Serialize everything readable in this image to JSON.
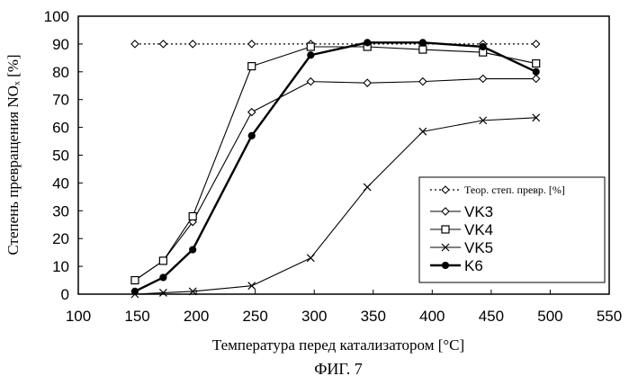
{
  "chart_data": {
    "type": "line",
    "title": "",
    "caption": "ФИГ. 7",
    "xlabel": "Температура перед катализатором [°C]",
    "ylabel": "Степень превращения NOₓ [%]",
    "xlim": [
      100,
      550
    ],
    "ylim": [
      0,
      100
    ],
    "x_ticks": [
      "100",
      "150",
      "200",
      "250",
      "300",
      "350",
      "400",
      "450",
      "500",
      "550"
    ],
    "y_ticks": [
      "0",
      "10",
      "20",
      "30",
      "40",
      "50",
      "60",
      "70",
      "80",
      "90",
      "100"
    ],
    "grid": false,
    "legend_position": "right",
    "series": [
      {
        "name": "Теор. степ. превр. [%]",
        "style": "dotted",
        "marker": "diamond",
        "color": "#000000",
        "x": [
          148,
          172,
          197,
          247,
          297,
          345,
          392,
          443,
          488
        ],
        "y": [
          90,
          90,
          90,
          90,
          90,
          90,
          90,
          90,
          90
        ]
      },
      {
        "name": "VK3",
        "style": "solid",
        "marker": "diamond",
        "color": "#000000",
        "x": [
          148,
          172,
          197,
          247,
          297,
          345,
          392,
          443,
          488
        ],
        "y": [
          5,
          12,
          26,
          65.5,
          76.5,
          76,
          76.5,
          77.5,
          77.5
        ]
      },
      {
        "name": "VK4",
        "style": "solid",
        "marker": "square",
        "color": "#000000",
        "x": [
          148,
          172,
          197,
          247,
          297,
          345,
          392,
          443,
          488
        ],
        "y": [
          5,
          12,
          28,
          82,
          89,
          89,
          88,
          87,
          83
        ]
      },
      {
        "name": "VK5",
        "style": "solid",
        "marker": "x",
        "color": "#000000",
        "x": [
          148,
          172,
          197,
          247,
          297,
          345,
          392,
          443,
          488
        ],
        "y": [
          0,
          0.5,
          1,
          3,
          13,
          38.5,
          58.5,
          62.5,
          63.5
        ]
      },
      {
        "name": "K6",
        "style": "bold",
        "marker": "circle",
        "color": "#000000",
        "x": [
          148,
          172,
          197,
          247,
          297,
          345,
          392,
          443,
          488
        ],
        "y": [
          1,
          6,
          16,
          57,
          86,
          90.5,
          90.5,
          89,
          80
        ]
      }
    ]
  }
}
